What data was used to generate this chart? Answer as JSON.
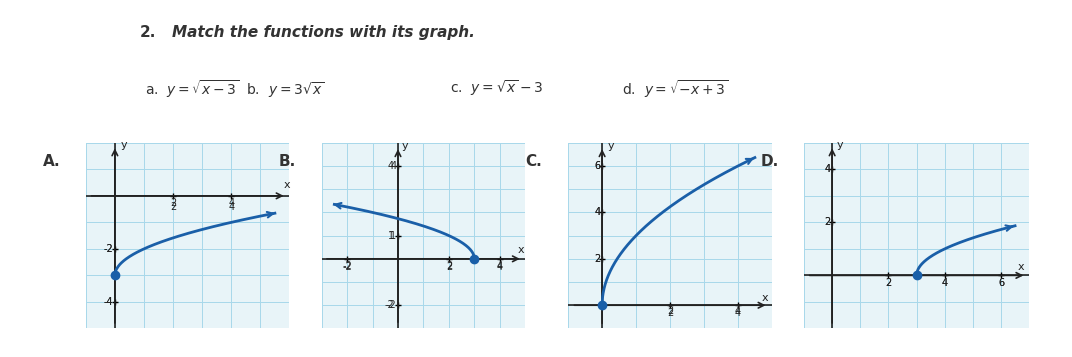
{
  "title_number": "2.",
  "title_text": "Match the functions with its graph.",
  "functions": {
    "a": "y = \\sqrt{x-3}",
    "b": "y = 3\\sqrt{x}",
    "c": "y = \\sqrt{x} - 3",
    "d": "y = \\sqrt{-x+3}"
  },
  "graphs": [
    "A.",
    "B.",
    "C.",
    "D."
  ],
  "background_color": "#ffffff",
  "grid_color": "#a8d8ea",
  "curve_color": "#1a5fa8",
  "axis_color": "#222222",
  "label_color": "#222222",
  "graph_A": {
    "xlim": [
      -1,
      6
    ],
    "ylim": [
      -5,
      2
    ],
    "xticks": [
      2,
      4
    ],
    "yticks": [
      -4,
      -2
    ],
    "func": "sqrt_x_minus_3",
    "start_x": 0,
    "end_x": 5.5
  },
  "graph_B": {
    "xlim": [
      -3,
      5
    ],
    "ylim": [
      -3,
      5
    ],
    "xticks": [
      -2,
      2,
      4
    ],
    "yticks": [
      -2,
      1,
      4
    ],
    "func": "sqrt_neg_x_plus_3",
    "start_x": -2.5,
    "end_x": 3
  },
  "graph_C": {
    "xlim": [
      -1,
      5
    ],
    "ylim": [
      -1,
      7
    ],
    "xticks": [
      2,
      4
    ],
    "yticks": [
      2,
      4,
      6
    ],
    "func": "three_sqrt_x",
    "start_x": 0,
    "end_x": 4.5
  },
  "graph_D": {
    "xlim": [
      -1,
      7
    ],
    "ylim": [
      -2,
      5
    ],
    "xticks": [
      2,
      4,
      6
    ],
    "yticks": [
      2,
      4
    ],
    "func": "sqrt_x_minus_3_shifted",
    "start_x": 3,
    "end_x": 6.5
  }
}
